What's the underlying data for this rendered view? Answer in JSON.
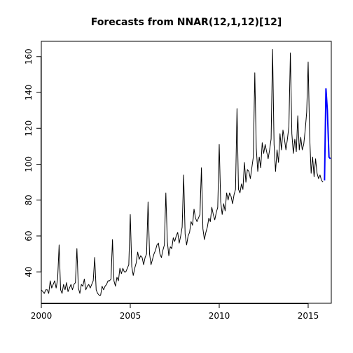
{
  "chart_data": {
    "type": "line",
    "title": "Forecasts from NNAR(12,1,12)[12]",
    "xlabel": "",
    "ylabel": "",
    "xlim": [
      2000,
      2016.3
    ],
    "ylim": [
      22.5,
      168.5
    ],
    "x_ticks": [
      2000,
      2005,
      2010,
      2015
    ],
    "y_ticks": [
      40,
      60,
      80,
      100,
      120,
      140,
      160
    ],
    "grid": false,
    "legend": "none",
    "colors": {
      "observed": "#000000",
      "forecast": "#0000ff"
    },
    "series": [
      {
        "role": "observed",
        "start": 2000,
        "frequency": 12,
        "values": [
          30,
          29,
          28,
          30,
          30,
          28,
          35,
          31,
          33,
          35,
          31,
          36,
          55,
          30,
          28,
          33,
          30,
          34,
          29,
          31,
          33,
          30,
          33,
          34,
          53,
          31,
          28,
          33,
          32,
          36,
          30,
          32,
          33,
          31,
          33,
          35,
          48,
          30,
          28,
          27,
          27,
          32,
          30,
          32,
          33,
          35,
          35,
          36,
          58,
          35,
          32,
          37,
          35,
          42,
          39,
          42,
          40,
          40,
          42,
          44,
          72,
          43,
          38,
          42,
          45,
          51,
          47,
          49,
          48,
          44,
          48,
          50,
          79,
          50,
          44,
          47,
          50,
          52,
          55,
          56,
          50,
          48,
          52,
          55,
          84,
          57,
          49,
          54,
          53,
          59,
          57,
          60,
          62,
          56,
          60,
          65,
          94,
          61,
          55,
          60,
          62,
          68,
          66,
          75,
          70,
          68,
          70,
          72,
          98,
          64,
          58,
          62,
          65,
          70,
          68,
          76,
          72,
          69,
          73,
          76,
          111,
          79,
          72,
          78,
          74,
          84,
          80,
          84,
          82,
          78,
          83,
          86,
          131,
          86,
          84,
          89,
          86,
          101,
          90,
          97,
          96,
          92,
          98,
          104,
          151,
          109,
          96,
          104,
          98,
          112,
          106,
          111,
          107,
          103,
          108,
          114,
          164,
          111,
          96,
          108,
          101,
          117,
          108,
          119,
          114,
          108,
          114,
          121,
          162,
          117,
          106,
          114,
          107,
          127,
          108,
          115,
          108,
          111,
          119,
          129,
          157,
          116,
          95,
          104,
          93,
          103,
          95,
          92,
          94,
          91,
          90
        ]
      },
      {
        "role": "forecast",
        "x": [
          2015.92,
          2016.0,
          2016.08,
          2016.17,
          2016.25
        ],
        "values": [
          91,
          142,
          130,
          104,
          103
        ]
      }
    ]
  }
}
